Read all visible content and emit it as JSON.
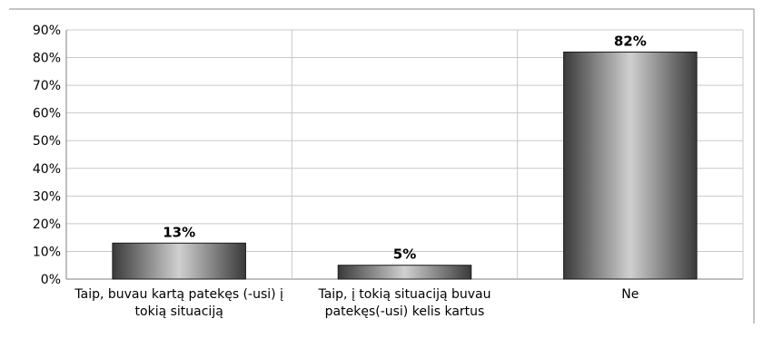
{
  "chart_data": {
    "type": "bar",
    "title": "",
    "xlabel": "",
    "ylabel": "",
    "ylim": [
      0,
      90
    ],
    "y_ticks": [
      "0%",
      "10%",
      "20%",
      "30%",
      "40%",
      "50%",
      "60%",
      "70%",
      "80%",
      "90%"
    ],
    "grid": true,
    "categories": [
      [
        "Taip, buvau kartą patekęs (-usi) į",
        "tokią situaciją"
      ],
      [
        "Taip, į tokią situaciją buvau",
        "patekęs(-usi) kelis kartus"
      ],
      [
        "Ne"
      ]
    ],
    "values": [
      13,
      5,
      82
    ],
    "data_labels": [
      "13%",
      "5%",
      "82%"
    ],
    "colors": {
      "bar_dark": "#3a3a3a",
      "bar_light": "#d0d0d0",
      "bar_stroke": "#1a1a1a",
      "gridline": "#c8c8c8",
      "frame": "#888888",
      "axis": "#7f7f7f"
    }
  }
}
